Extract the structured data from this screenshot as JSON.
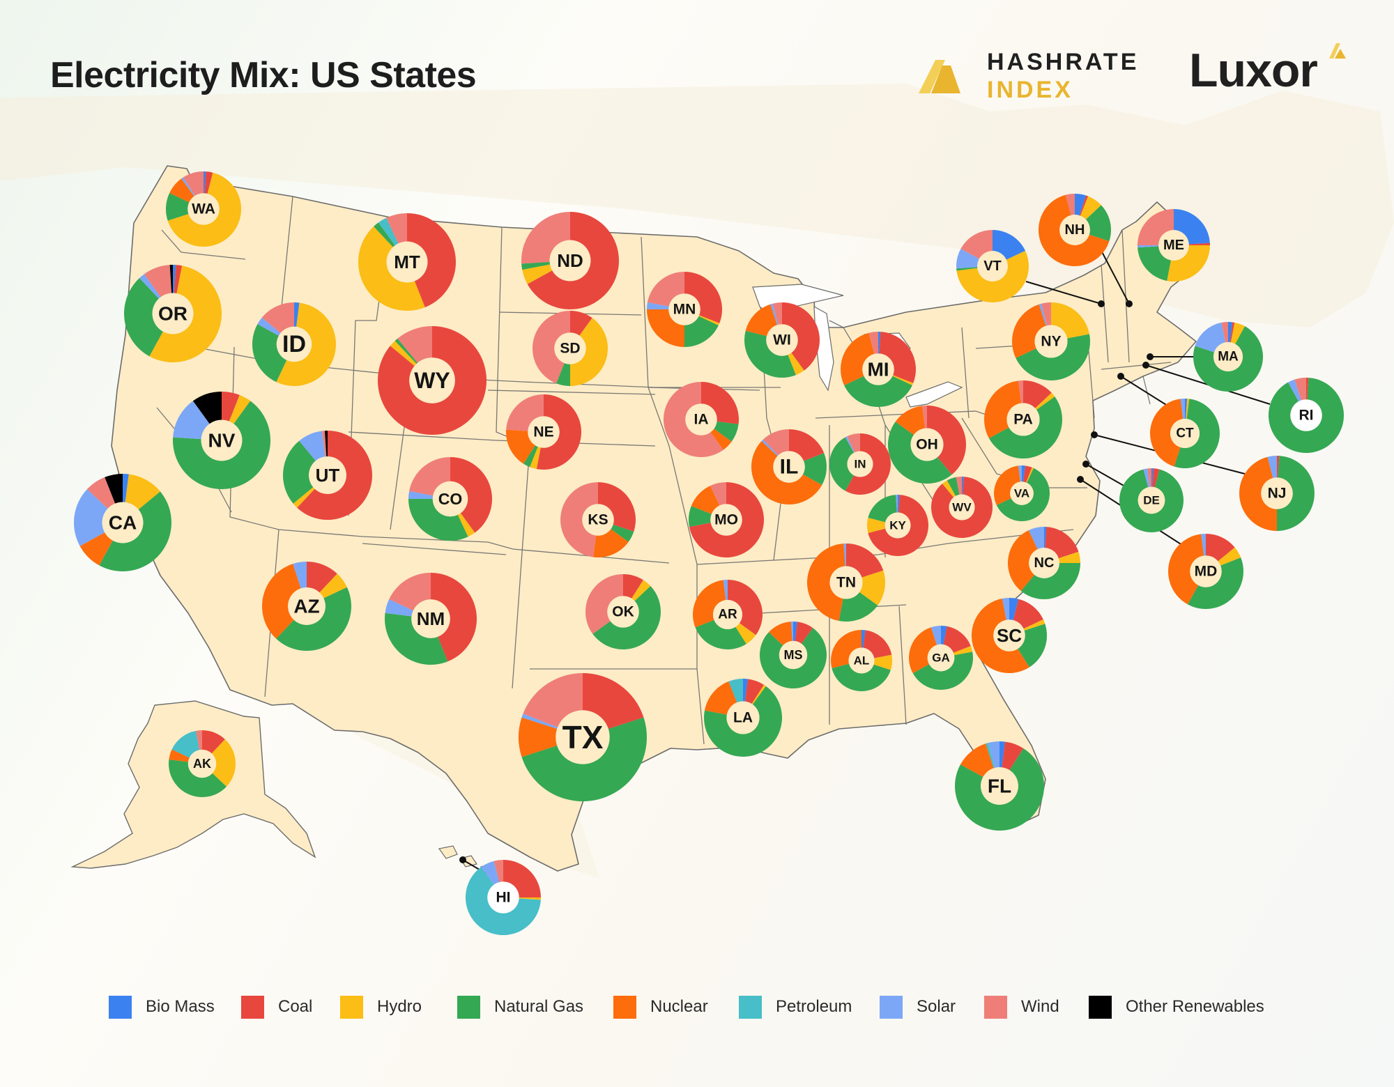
{
  "header": {
    "title": "Electricity Mix: US States"
  },
  "brands": {
    "hashrate": {
      "line1": "HASHRATE",
      "line2": "INDEX",
      "color": "#e9b52f"
    },
    "luxor": {
      "name": "Luxor",
      "accent": "#e9b52f"
    }
  },
  "colors": {
    "land": "#fdecc6",
    "border": "#6b6b6b",
    "bg_land": "#f5f1e7",
    "Bio Mass": "#3b82f0",
    "Coal": "#e8473e",
    "Hydro": "#fbbd16",
    "Natural Gas": "#35a853",
    "Nuclear": "#fd6d0c",
    "Petroleum": "#47bec8",
    "Solar": "#7ca7f7",
    "Wind": "#ef7e78",
    "Other Renewables": "#000000"
  },
  "legend": [
    "Bio Mass",
    "Coal",
    "Hydro",
    "Natural Gas",
    "Nuclear",
    "Petroleum",
    "Solar",
    "Wind",
    "Other Renewables"
  ],
  "chart_data": {
    "type": "pie",
    "title": "Electricity Mix: US States",
    "sources": [
      "Bio Mass",
      "Coal",
      "Hydro",
      "Natural Gas",
      "Nuclear",
      "Petroleum",
      "Solar",
      "Wind",
      "Other Renewables"
    ],
    "states": [
      {
        "state": "WA",
        "mix": {
          "Bio Mass": 1,
          "Coal": 3,
          "Hydro": 66,
          "Natural Gas": 12,
          "Nuclear": 8,
          "Solar": 1,
          "Wind": 9
        }
      },
      {
        "state": "OR",
        "mix": {
          "Bio Mass": 1,
          "Coal": 2,
          "Hydro": 55,
          "Natural Gas": 30,
          "Solar": 2,
          "Wind": 9,
          "Other Renewables": 1
        }
      },
      {
        "state": "CA",
        "mix": {
          "Bio Mass": 2,
          "Hydro": 12,
          "Natural Gas": 44,
          "Nuclear": 9,
          "Solar": 20,
          "Wind": 7,
          "Other Renewables": 6
        }
      },
      {
        "state": "NV",
        "mix": {
          "Coal": 6,
          "Hydro": 4,
          "Natural Gas": 66,
          "Solar": 14,
          "Other Renewables": 10
        }
      },
      {
        "state": "ID",
        "mix": {
          "Bio Mass": 2,
          "Hydro": 55,
          "Natural Gas": 26,
          "Solar": 3,
          "Wind": 14
        }
      },
      {
        "state": "MT",
        "mix": {
          "Coal": 44,
          "Hydro": 44,
          "Natural Gas": 2,
          "Petroleum": 3,
          "Wind": 7
        }
      },
      {
        "state": "WY",
        "mix": {
          "Coal": 86,
          "Hydro": 2,
          "Natural Gas": 1,
          "Wind": 11
        }
      },
      {
        "state": "UT",
        "mix": {
          "Coal": 62,
          "Hydro": 2,
          "Natural Gas": 25,
          "Solar": 9,
          "Wind": 1,
          "Other Renewables": 1
        }
      },
      {
        "state": "CO",
        "mix": {
          "Coal": 40,
          "Hydro": 3,
          "Natural Gas": 32,
          "Solar": 3,
          "Wind": 22
        }
      },
      {
        "state": "AZ",
        "mix": {
          "Coal": 12,
          "Hydro": 6,
          "Natural Gas": 44,
          "Nuclear": 33,
          "Solar": 5
        }
      },
      {
        "state": "NM",
        "mix": {
          "Coal": 44,
          "Natural Gas": 33,
          "Solar": 5,
          "Wind": 18
        }
      },
      {
        "state": "ND",
        "mix": {
          "Coal": 67,
          "Hydro": 5,
          "Natural Gas": 2,
          "Wind": 26
        }
      },
      {
        "state": "SD",
        "mix": {
          "Coal": 10,
          "Hydro": 40,
          "Natural Gas": 6,
          "Wind": 44
        }
      },
      {
        "state": "NE",
        "mix": {
          "Coal": 53,
          "Hydro": 3,
          "Natural Gas": 3,
          "Nuclear": 17,
          "Wind": 24
        }
      },
      {
        "state": "KS",
        "mix": {
          "Coal": 30,
          "Natural Gas": 5,
          "Nuclear": 17,
          "Wind": 48
        }
      },
      {
        "state": "OK",
        "mix": {
          "Coal": 9,
          "Hydro": 4,
          "Natural Gas": 52,
          "Wind": 35
        }
      },
      {
        "state": "TX",
        "mix": {
          "Coal": 20,
          "Natural Gas": 50,
          "Nuclear": 10,
          "Solar": 1,
          "Wind": 19
        }
      },
      {
        "state": "MN",
        "mix": {
          "Coal": 31,
          "Hydro": 1,
          "Natural Gas": 18,
          "Nuclear": 25,
          "Solar": 3,
          "Wind": 22
        }
      },
      {
        "state": "IA",
        "mix": {
          "Coal": 27,
          "Natural Gas": 8,
          "Nuclear": 5,
          "Wind": 60
        }
      },
      {
        "state": "MO",
        "mix": {
          "Coal": 72,
          "Natural Gas": 9,
          "Nuclear": 12,
          "Wind": 7
        }
      },
      {
        "state": "AR",
        "mix": {
          "Coal": 35,
          "Hydro": 6,
          "Natural Gas": 28,
          "Nuclear": 29,
          "Solar": 2
        }
      },
      {
        "state": "LA",
        "mix": {
          "Coal": 7,
          "Hydro": 1,
          "Natural Gas": 68,
          "Nuclear": 16,
          "Petroleum": 6,
          "Bio Mass": 2
        }
      },
      {
        "state": "WI",
        "mix": {
          "Coal": 40,
          "Hydro": 4,
          "Natural Gas": 35,
          "Nuclear": 16,
          "Wind": 4,
          "Solar": 1
        }
      },
      {
        "state": "IL",
        "mix": {
          "Coal": 19,
          "Natural Gas": 14,
          "Nuclear": 54,
          "Wind": 12,
          "Solar": 1
        }
      },
      {
        "state": "MI",
        "mix": {
          "Coal": 30,
          "Hydro": 1,
          "Natural Gas": 36,
          "Nuclear": 28,
          "Wind": 4,
          "Bio Mass": 1
        }
      },
      {
        "state": "IN",
        "mix": {
          "Coal": 58,
          "Natural Gas": 34,
          "Wind": 7,
          "Solar": 1
        }
      },
      {
        "state": "OH",
        "mix": {
          "Coal": 39,
          "Natural Gas": 46,
          "Nuclear": 13,
          "Wind": 2
        }
      },
      {
        "state": "KY",
        "mix": {
          "Coal": 70,
          "Hydro": 8,
          "Natural Gas": 20,
          "Solar": 1,
          "Bio Mass": 1
        }
      },
      {
        "state": "WV",
        "mix": {
          "Coal": 88,
          "Hydro": 3,
          "Natural Gas": 5,
          "Wind": 3,
          "Bio Mass": 1
        }
      },
      {
        "state": "TN",
        "mix": {
          "Coal": 20,
          "Hydro": 15,
          "Natural Gas": 18,
          "Nuclear": 46,
          "Solar": 1
        }
      },
      {
        "state": "MS",
        "mix": {
          "Coal": 8,
          "Natural Gas": 77,
          "Nuclear": 12,
          "Bio Mass": 2,
          "Solar": 1
        }
      },
      {
        "state": "AL",
        "mix": {
          "Coal": 20,
          "Hydro": 8,
          "Natural Gas": 41,
          "Nuclear": 29,
          "Bio Mass": 2
        }
      },
      {
        "state": "GA",
        "mix": {
          "Coal": 16,
          "Hydro": 3,
          "Natural Gas": 45,
          "Nuclear": 28,
          "Solar": 5,
          "Bio Mass": 3
        }
      },
      {
        "state": "FL",
        "mix": {
          "Coal": 7,
          "Natural Gas": 74,
          "Nuclear": 12,
          "Solar": 4,
          "Bio Mass": 2,
          "Petroleum": 1
        }
      },
      {
        "state": "SC",
        "mix": {
          "Coal": 14,
          "Hydro": 2,
          "Natural Gas": 21,
          "Nuclear": 56,
          "Solar": 3,
          "Bio Mass": 4
        }
      },
      {
        "state": "NC",
        "mix": {
          "Coal": 19,
          "Hydro": 5,
          "Natural Gas": 36,
          "Nuclear": 32,
          "Solar": 7,
          "Bio Mass": 1
        }
      },
      {
        "state": "VA",
        "mix": {
          "Coal": 4,
          "Hydro": 1,
          "Natural Gas": 61,
          "Nuclear": 30,
          "Solar": 2,
          "Bio Mass": 2
        }
      },
      {
        "state": "PA",
        "mix": {
          "Coal": 13,
          "Hydro": 2,
          "Natural Gas": 52,
          "Nuclear": 31,
          "Wind": 2
        }
      },
      {
        "state": "NY",
        "mix": {
          "Hydro": 22,
          "Natural Gas": 46,
          "Nuclear": 27,
          "Wind": 4,
          "Solar": 1
        }
      },
      {
        "state": "VT",
        "mix": {
          "Bio Mass": 18,
          "Hydro": 55,
          "Solar": 9,
          "Wind": 17,
          "Natural Gas": 1
        }
      },
      {
        "state": "NH",
        "mix": {
          "Bio Mass": 5,
          "Coal": 1,
          "Hydro": 7,
          "Natural Gas": 17,
          "Nuclear": 66,
          "Wind": 4
        }
      },
      {
        "state": "ME",
        "mix": {
          "Bio Mass": 24,
          "Hydro": 28,
          "Natural Gas": 21,
          "Wind": 25,
          "Coal": 1,
          "Solar": 1
        }
      },
      {
        "state": "MA",
        "mix": {
          "Coal": 1,
          "Hydro": 5,
          "Natural Gas": 72,
          "Solar": 17,
          "Wind": 3,
          "Bio Mass": 2
        }
      },
      {
        "state": "RI",
        "mix": {
          "Coal": 1,
          "Natural Gas": 91,
          "Solar": 3,
          "Wind": 5
        }
      },
      {
        "state": "CT",
        "mix": {
          "Natural Gas": 53,
          "Nuclear": 43,
          "Solar": 2,
          "Bio Mass": 1,
          "Hydro": 1
        }
      },
      {
        "state": "NJ",
        "mix": {
          "Coal": 1,
          "Natural Gas": 49,
          "Nuclear": 46,
          "Solar": 4
        }
      },
      {
        "state": "DE",
        "mix": {
          "Coal": 3,
          "Natural Gas": 92,
          "Solar": 2,
          "Wind": 2,
          "Bio Mass": 1
        }
      },
      {
        "state": "MD",
        "mix": {
          "Coal": 14,
          "Hydro": 5,
          "Natural Gas": 39,
          "Nuclear": 40,
          "Solar": 2
        }
      },
      {
        "state": "AK",
        "mix": {
          "Coal": 12,
          "Hydro": 25,
          "Natural Gas": 40,
          "Petroleum": 15,
          "Wind": 3,
          "Nuclear": 5
        }
      },
      {
        "state": "HI",
        "mix": {
          "Coal": 25,
          "Hydro": 1,
          "Petroleum": 64,
          "Solar": 6,
          "Wind": 4
        }
      }
    ]
  }
}
